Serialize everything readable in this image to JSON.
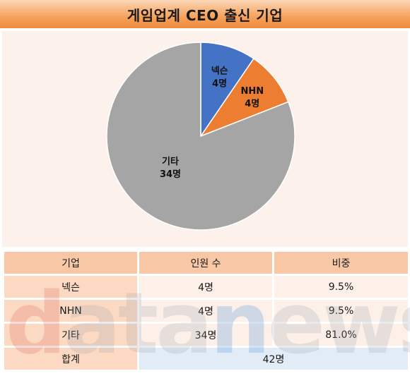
{
  "title": "게임업계 CEO 출신 기업",
  "chart_data": {
    "type": "pie",
    "title": "게임업계 CEO 출신 기업",
    "slices": [
      {
        "label": "넥슨",
        "value_label": "4명",
        "value": 4,
        "color": "#4472c4"
      },
      {
        "label": "NHN",
        "value_label": "4명",
        "value": 4,
        "color": "#ed7d31"
      },
      {
        "label": "기타",
        "value_label": "34명",
        "value": 34,
        "color": "#a5a5a5"
      }
    ]
  },
  "table": {
    "headers": [
      "기업",
      "인원 수",
      "비중"
    ],
    "rows": [
      [
        "넥슨",
        "4명",
        "9.5%"
      ],
      [
        "NHN",
        "4명",
        "9.5%"
      ],
      [
        "기타",
        "34명",
        "81.0%"
      ]
    ],
    "total": {
      "label": "합계",
      "value": "42명"
    }
  },
  "watermark": {
    "d": "d",
    "mid": "ata",
    "n": "n",
    "end": "ews"
  }
}
